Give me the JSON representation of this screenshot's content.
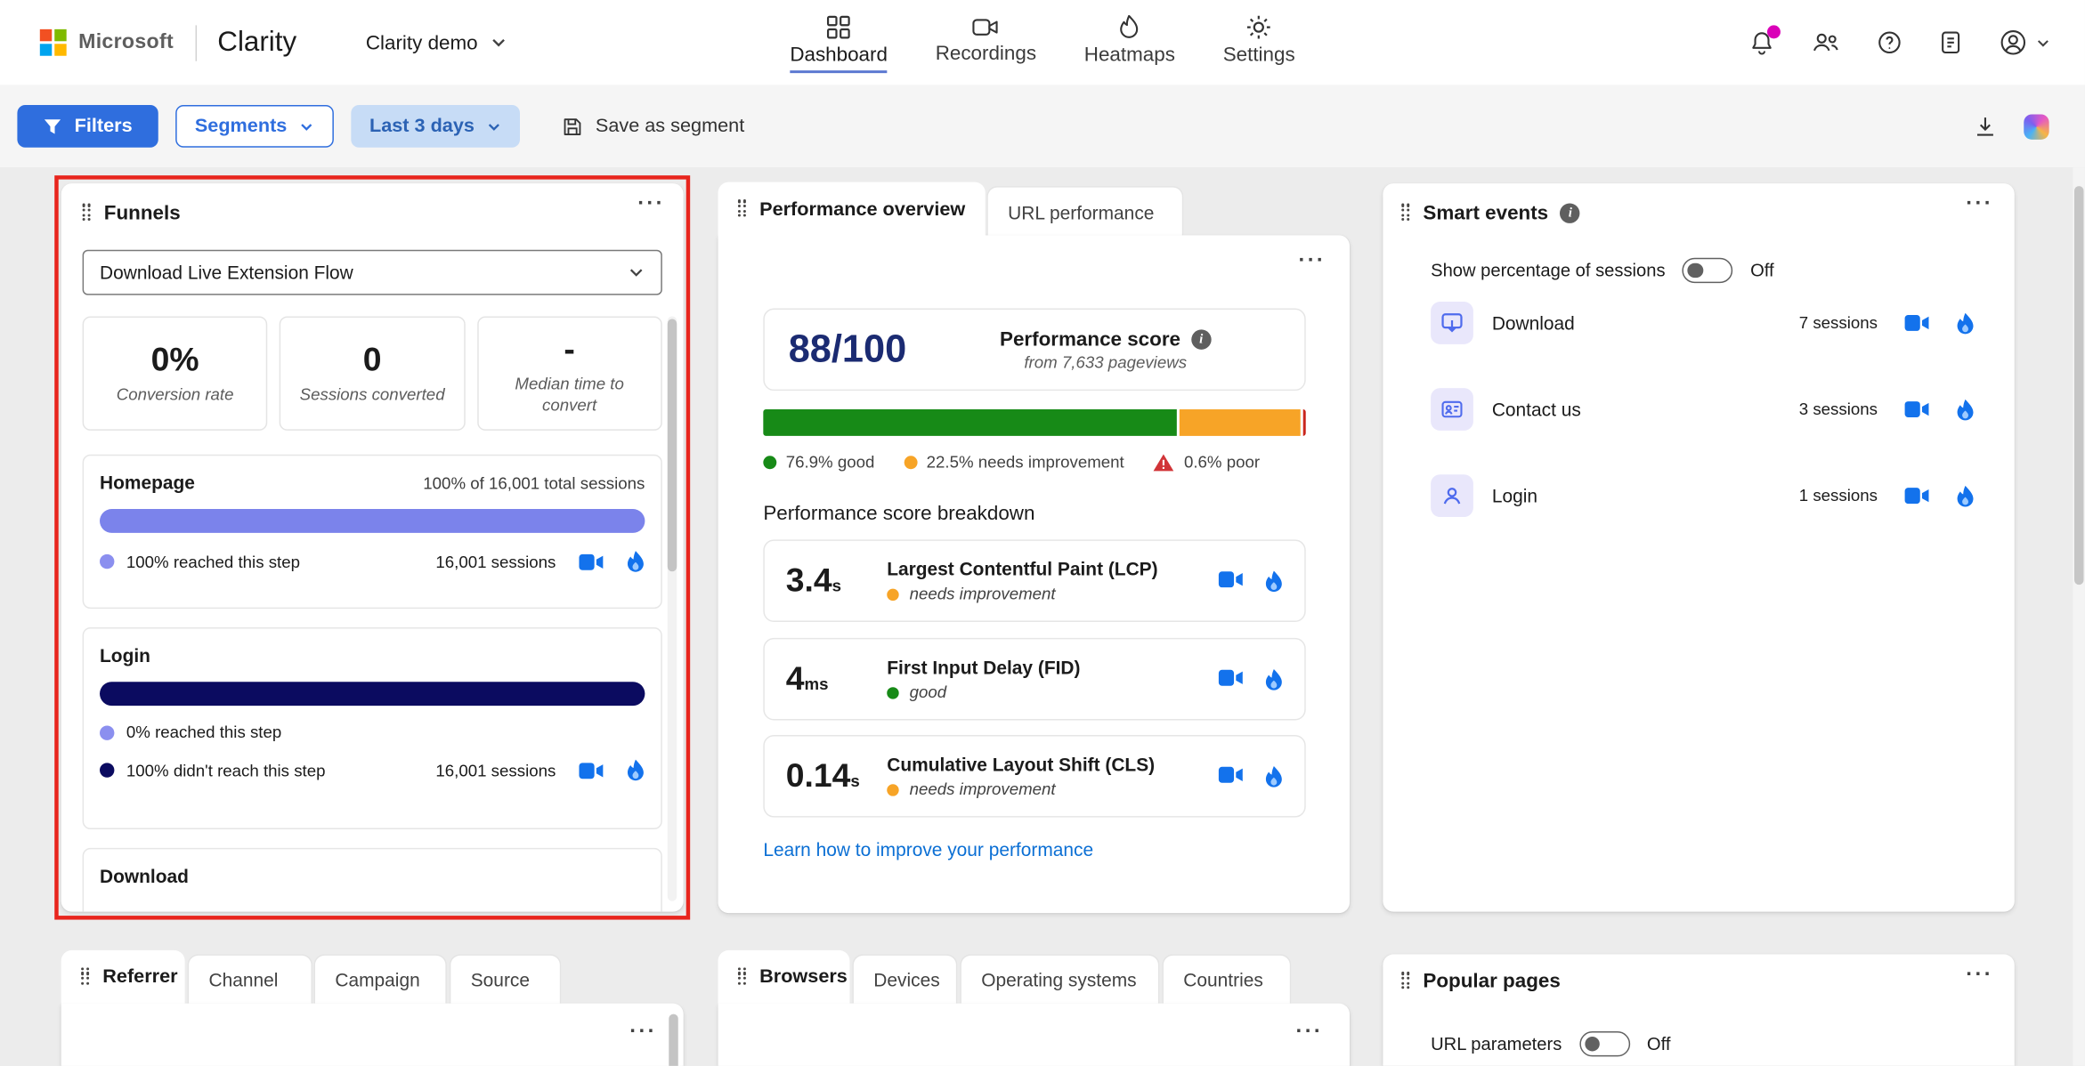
{
  "ui": {
    "more_menu": "···"
  },
  "header": {
    "microsoft_label": "Microsoft",
    "app_name": "Clarity",
    "project_name": "Clarity demo",
    "nav": [
      {
        "label": "Dashboard"
      },
      {
        "label": "Recordings"
      },
      {
        "label": "Heatmaps"
      },
      {
        "label": "Settings"
      }
    ]
  },
  "toolbar": {
    "filters_label": "Filters",
    "segments_label": "Segments",
    "date_range_label": "Last 3 days",
    "save_segment_label": "Save as segment"
  },
  "funnels": {
    "title": "Funnels",
    "selected_funnel": "Download Live Extension Flow",
    "stats": [
      {
        "value": "0%",
        "label": "Conversion rate"
      },
      {
        "value": "0",
        "label": "Sessions converted"
      },
      {
        "value": "-",
        "label": "Median time to convert"
      }
    ],
    "steps": {
      "homepage": {
        "name": "Homepage",
        "summary": "100% of 16,001 total sessions",
        "bar_pct": 100,
        "reached_label": "100% reached this step",
        "sessions": "16,001 sessions"
      },
      "login": {
        "name": "Login",
        "bar_pct": 100,
        "reached_label": "0% reached this step",
        "not_reached_label": "100% didn't reach this step",
        "sessions": "16,001 sessions"
      },
      "download": {
        "name": "Download"
      }
    }
  },
  "performance": {
    "tab_overview": "Performance overview",
    "tab_url": "URL performance",
    "score": "88/100",
    "score_title": "Performance score",
    "score_subtitle": "from 7,633 pageviews",
    "distribution": {
      "good_pct": 76.9,
      "needs_improvement_pct": 22.5,
      "poor_pct": 0.6
    },
    "legend": {
      "good": "76.9% good",
      "needs_improvement": "22.5% needs improvement",
      "poor": "0.6% poor"
    },
    "breakdown_title": "Performance score breakdown",
    "metrics": [
      {
        "value": "3.4",
        "unit": "s",
        "name": "Largest Contentful Paint (LCP)",
        "status": "needs improvement"
      },
      {
        "value": "4",
        "unit": "ms",
        "name": "First Input Delay (FID)",
        "status": "good"
      },
      {
        "value": "0.14",
        "unit": "s",
        "name": "Cumulative Layout Shift (CLS)",
        "status": "needs improvement"
      }
    ],
    "link": "Learn how to improve your performance"
  },
  "smart_events": {
    "title": "Smart events",
    "toggle_label": "Show percentage of sessions",
    "toggle_state": "Off",
    "events": [
      {
        "name": "Download",
        "sessions": "7 sessions"
      },
      {
        "name": "Contact us",
        "sessions": "3 sessions"
      },
      {
        "name": "Login",
        "sessions": "1 sessions"
      }
    ]
  },
  "referrer_card": {
    "tabs": [
      "Referrer",
      "Channel",
      "Campaign",
      "Source"
    ]
  },
  "browsers_card": {
    "tabs": [
      "Browsers",
      "Devices",
      "Operating systems",
      "Countries"
    ]
  },
  "popular_pages": {
    "title": "Popular pages",
    "toggle_label": "URL parameters",
    "toggle_state": "Off"
  },
  "colors": {
    "accent_blue": "#2F6EDE",
    "funnel_purple": "#7B83EB",
    "funnel_navy": "#0B0B60",
    "good_green": "#178A17",
    "warn_orange": "#F7A427",
    "poor_red": "#C9261D",
    "link_blue": "#0B6FD4",
    "badge_magenta": "#DA00B8"
  }
}
